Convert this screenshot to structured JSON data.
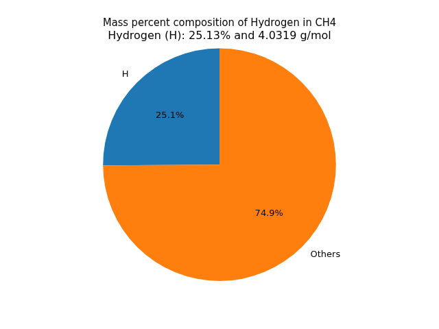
{
  "chart_data": {
    "type": "pie",
    "title": [
      "Mass percent composition of Hydrogen in CH4",
      "Hydrogen (H): 25.13% and 4.0319 g/mol"
    ],
    "categories": [
      "H",
      "Others"
    ],
    "values": [
      25.1,
      74.9
    ],
    "value_labels": [
      "25.1%",
      "74.9%"
    ],
    "colors": [
      "#1f77b4",
      "#ff7f0e"
    ],
    "data_labels": true
  }
}
